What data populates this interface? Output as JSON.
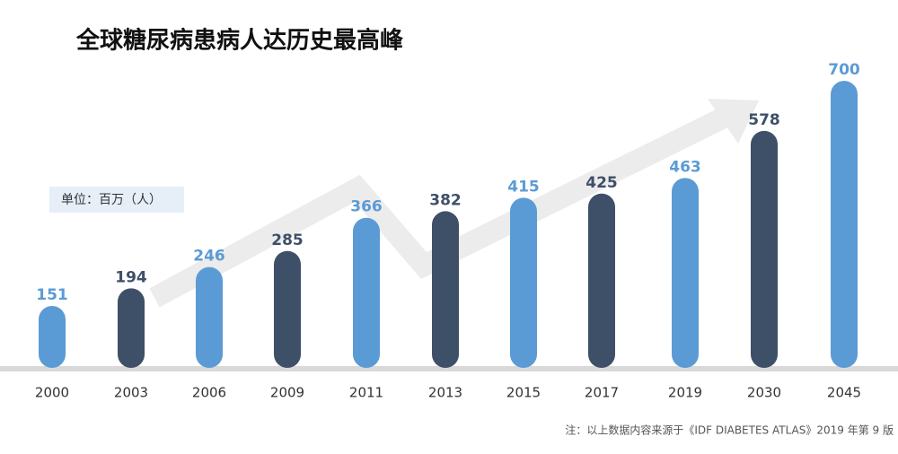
{
  "chart_data": {
    "type": "bar",
    "title": "全球糖尿病患病人达历史最高峰",
    "unit_label": "单位：百万（人）",
    "note": "注：以上数据内容来源于《IDF DIABETES ATLAS》2019 年第 9 版",
    "categories": [
      "2000",
      "2003",
      "2006",
      "2009",
      "2011",
      "2013",
      "2015",
      "2017",
      "2019",
      "2030",
      "2045"
    ],
    "values": [
      151,
      194,
      246,
      285,
      366,
      382,
      415,
      425,
      463,
      578,
      700
    ],
    "colors": [
      "#5b9bd5",
      "#3e4f68",
      "#5b9bd5",
      "#3e4f68",
      "#5b9bd5",
      "#3e4f68",
      "#5b9bd5",
      "#3e4f68",
      "#5b9bd5",
      "#3e4f68",
      "#5b9bd5"
    ]
  }
}
